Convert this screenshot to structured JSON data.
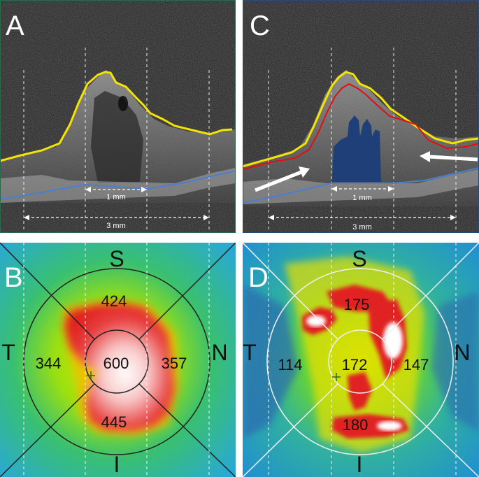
{
  "panels": {
    "a": {
      "label": "A",
      "scale_inner": "1 mm",
      "scale_outer": "3 mm"
    },
    "c": {
      "label": "C",
      "scale_inner": "1 mm",
      "scale_outer": "3 mm"
    },
    "b": {
      "label": "B",
      "orientation": {
        "superior": "S",
        "inferior": "I",
        "temporal": "T",
        "nasal": "N"
      },
      "values": {
        "center": "600",
        "superior": "424",
        "inferior": "445",
        "temporal": "344",
        "nasal": "357"
      }
    },
    "d": {
      "label": "D",
      "orientation": {
        "superior": "S",
        "inferior": "I",
        "temporal": "T",
        "nasal": "N"
      },
      "values": {
        "center": "172",
        "superior": "175",
        "inferior": "180",
        "temporal": "114",
        "nasal": "147"
      }
    }
  },
  "colors": {
    "rpe_line": "#4a7fd0",
    "ilm_line": "#f5e400",
    "inner_line": "#e01010",
    "fluid": "#1f3f78",
    "arrow": "#ffffff"
  }
}
